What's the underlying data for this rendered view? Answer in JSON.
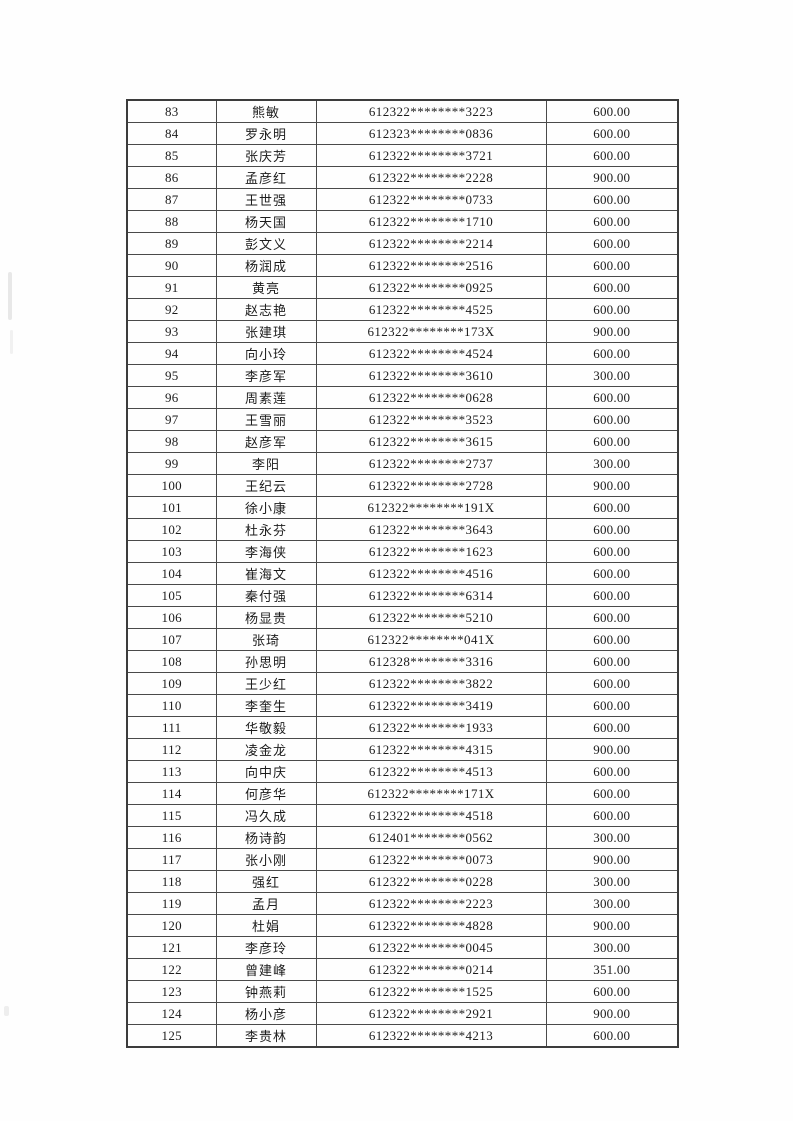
{
  "table": {
    "columns": [
      "no",
      "name",
      "id",
      "amount"
    ],
    "rows": [
      {
        "no": "83",
        "name": "熊敏",
        "id": "612322********3223",
        "amount": "600.00"
      },
      {
        "no": "84",
        "name": "罗永明",
        "id": "612323********0836",
        "amount": "600.00"
      },
      {
        "no": "85",
        "name": "张庆芳",
        "id": "612322********3721",
        "amount": "600.00"
      },
      {
        "no": "86",
        "name": "孟彦红",
        "id": "612322********2228",
        "amount": "900.00"
      },
      {
        "no": "87",
        "name": "王世强",
        "id": "612322********0733",
        "amount": "600.00"
      },
      {
        "no": "88",
        "name": "杨天国",
        "id": "612322********1710",
        "amount": "600.00"
      },
      {
        "no": "89",
        "name": "彭文义",
        "id": "612322********2214",
        "amount": "600.00"
      },
      {
        "no": "90",
        "name": "杨润成",
        "id": "612322********2516",
        "amount": "600.00"
      },
      {
        "no": "91",
        "name": "黄亮",
        "id": "612322********0925",
        "amount": "600.00"
      },
      {
        "no": "92",
        "name": "赵志艳",
        "id": "612322********4525",
        "amount": "600.00"
      },
      {
        "no": "93",
        "name": "张建琪",
        "id": "612322********173X",
        "amount": "900.00"
      },
      {
        "no": "94",
        "name": "向小玲",
        "id": "612322********4524",
        "amount": "600.00"
      },
      {
        "no": "95",
        "name": "李彦军",
        "id": "612322********3610",
        "amount": "300.00"
      },
      {
        "no": "96",
        "name": "周素莲",
        "id": "612322********0628",
        "amount": "600.00"
      },
      {
        "no": "97",
        "name": "王雪丽",
        "id": "612322********3523",
        "amount": "600.00"
      },
      {
        "no": "98",
        "name": "赵彦军",
        "id": "612322********3615",
        "amount": "600.00"
      },
      {
        "no": "99",
        "name": "李阳",
        "id": "612322********2737",
        "amount": "300.00"
      },
      {
        "no": "100",
        "name": "王纪云",
        "id": "612322********2728",
        "amount": "900.00"
      },
      {
        "no": "101",
        "name": "徐小康",
        "id": "612322********191X",
        "amount": "600.00"
      },
      {
        "no": "102",
        "name": "杜永芬",
        "id": "612322********3643",
        "amount": "600.00"
      },
      {
        "no": "103",
        "name": "李海侠",
        "id": "612322********1623",
        "amount": "600.00"
      },
      {
        "no": "104",
        "name": "崔海文",
        "id": "612322********4516",
        "amount": "600.00"
      },
      {
        "no": "105",
        "name": "秦付强",
        "id": "612322********6314",
        "amount": "600.00"
      },
      {
        "no": "106",
        "name": "杨显贵",
        "id": "612322********5210",
        "amount": "600.00"
      },
      {
        "no": "107",
        "name": "张琦",
        "id": "612322********041X",
        "amount": "600.00"
      },
      {
        "no": "108",
        "name": "孙思明",
        "id": "612328********3316",
        "amount": "600.00"
      },
      {
        "no": "109",
        "name": "王少红",
        "id": "612322********3822",
        "amount": "600.00"
      },
      {
        "no": "110",
        "name": "李奎生",
        "id": "612322********3419",
        "amount": "600.00"
      },
      {
        "no": "111",
        "name": "华敬毅",
        "id": "612322********1933",
        "amount": "600.00"
      },
      {
        "no": "112",
        "name": "凌金龙",
        "id": "612322********4315",
        "amount": "900.00"
      },
      {
        "no": "113",
        "name": "向中庆",
        "id": "612322********4513",
        "amount": "600.00"
      },
      {
        "no": "114",
        "name": "何彦华",
        "id": "612322********171X",
        "amount": "600.00"
      },
      {
        "no": "115",
        "name": "冯久成",
        "id": "612322********4518",
        "amount": "600.00"
      },
      {
        "no": "116",
        "name": "杨诗韵",
        "id": "612401********0562",
        "amount": "300.00"
      },
      {
        "no": "117",
        "name": "张小刚",
        "id": "612322********0073",
        "amount": "900.00"
      },
      {
        "no": "118",
        "name": "强红",
        "id": "612322********0228",
        "amount": "300.00"
      },
      {
        "no": "119",
        "name": "孟月",
        "id": "612322********2223",
        "amount": "300.00"
      },
      {
        "no": "120",
        "name": "杜娟",
        "id": "612322********4828",
        "amount": "900.00"
      },
      {
        "no": "121",
        "name": "李彦玲",
        "id": "612322********0045",
        "amount": "300.00"
      },
      {
        "no": "122",
        "name": "曾建峰",
        "id": "612322********0214",
        "amount": "351.00"
      },
      {
        "no": "123",
        "name": "钟燕莉",
        "id": "612322********1525",
        "amount": "600.00"
      },
      {
        "no": "124",
        "name": "杨小彦",
        "id": "612322********2921",
        "amount": "900.00"
      },
      {
        "no": "125",
        "name": "李贵林",
        "id": "612322********4213",
        "amount": "600.00"
      }
    ]
  }
}
